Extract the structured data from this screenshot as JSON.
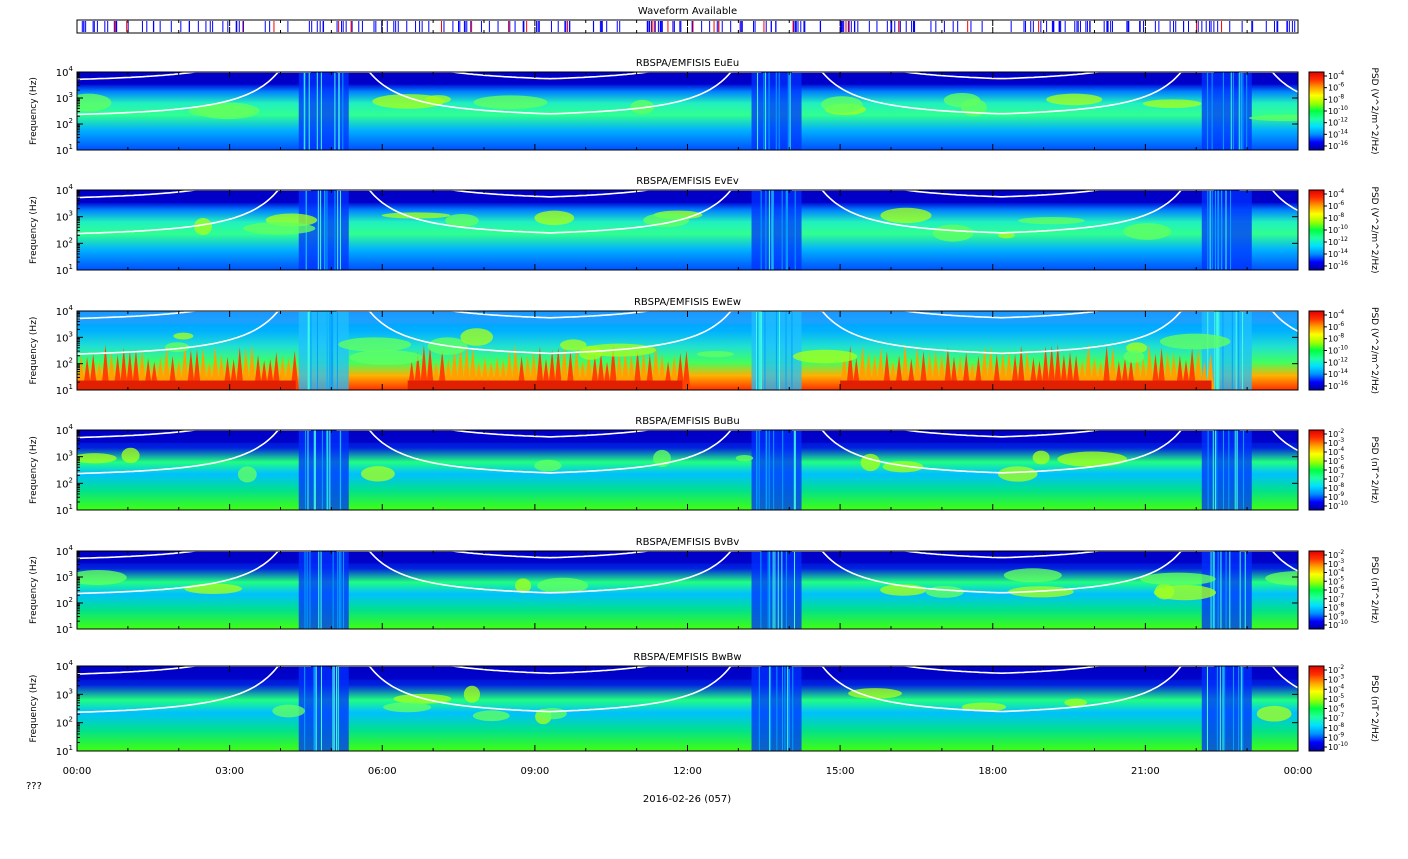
{
  "figure": {
    "date_label": "2016-02-26 (057)",
    "corner_label": "???"
  },
  "colors": {
    "waveform_tick_blue": "#0000ff",
    "waveform_tick_red": "#ff0000",
    "plasma_line": "#ffffff",
    "colormap": [
      "#0000a0",
      "#0000ff",
      "#0090ff",
      "#00e0ff",
      "#20ffa0",
      "#00ff40",
      "#a0ff00",
      "#ffff00",
      "#ffa000",
      "#ff3000",
      "#e00000"
    ]
  },
  "chart_data": [
    {
      "type": "other",
      "title": "Waveform Available",
      "x_range_hours": [
        0,
        24
      ]
    },
    {
      "type": "heatmap",
      "title": "RBSPA/EMFISIS  EuEu",
      "ylabel": "Frequency (Hz)",
      "ylim_log10": [
        1,
        4
      ],
      "y_ticks": [
        {
          "base": "10",
          "exp": "1"
        },
        {
          "base": "10",
          "exp": "2"
        },
        {
          "base": "10",
          "exp": "3"
        },
        {
          "base": "10",
          "exp": "4"
        }
      ],
      "colorbar": {
        "label": "PSD (V^2/m^2/Hz)",
        "ticks": [
          {
            "base": "10",
            "exp": "-4"
          },
          {
            "base": "10",
            "exp": "-6"
          },
          {
            "base": "10",
            "exp": "-8"
          },
          {
            "base": "10",
            "exp": "-10"
          },
          {
            "base": "10",
            "exp": "-12"
          },
          {
            "base": "10",
            "exp": "-14"
          },
          {
            "base": "10",
            "exp": "-16"
          }
        ]
      }
    },
    {
      "type": "heatmap",
      "title": "RBSPA/EMFISIS  EvEv",
      "ylabel": "Frequency (Hz)",
      "ylim_log10": [
        1,
        4
      ],
      "y_ticks": [
        {
          "base": "10",
          "exp": "1"
        },
        {
          "base": "10",
          "exp": "2"
        },
        {
          "base": "10",
          "exp": "3"
        },
        {
          "base": "10",
          "exp": "4"
        }
      ],
      "colorbar": {
        "label": "PSD (V^2/m^2/Hz)",
        "ticks": [
          {
            "base": "10",
            "exp": "-4"
          },
          {
            "base": "10",
            "exp": "-6"
          },
          {
            "base": "10",
            "exp": "-8"
          },
          {
            "base": "10",
            "exp": "-10"
          },
          {
            "base": "10",
            "exp": "-12"
          },
          {
            "base": "10",
            "exp": "-14"
          },
          {
            "base": "10",
            "exp": "-16"
          }
        ]
      }
    },
    {
      "type": "heatmap",
      "title": "RBSPA/EMFISIS  EwEw",
      "ylabel": "Frequency (Hz)",
      "ylim_log10": [
        1,
        4
      ],
      "y_ticks": [
        {
          "base": "10",
          "exp": "1"
        },
        {
          "base": "10",
          "exp": "2"
        },
        {
          "base": "10",
          "exp": "3"
        },
        {
          "base": "10",
          "exp": "4"
        }
      ],
      "colorbar": {
        "label": "PSD (V^2/m^2/Hz)",
        "ticks": [
          {
            "base": "10",
            "exp": "-4"
          },
          {
            "base": "10",
            "exp": "-6"
          },
          {
            "base": "10",
            "exp": "-8"
          },
          {
            "base": "10",
            "exp": "-10"
          },
          {
            "base": "10",
            "exp": "-12"
          },
          {
            "base": "10",
            "exp": "-14"
          },
          {
            "base": "10",
            "exp": "-16"
          }
        ]
      }
    },
    {
      "type": "heatmap",
      "title": "RBSPA/EMFISIS  BuBu",
      "ylabel": "Frequency (Hz)",
      "ylim_log10": [
        1,
        4
      ],
      "y_ticks": [
        {
          "base": "10",
          "exp": "1"
        },
        {
          "base": "10",
          "exp": "2"
        },
        {
          "base": "10",
          "exp": "3"
        },
        {
          "base": "10",
          "exp": "4"
        }
      ],
      "colorbar": {
        "label": "PSD (nT^2/Hz)",
        "ticks": [
          {
            "base": "10",
            "exp": "-2"
          },
          {
            "base": "10",
            "exp": "-3"
          },
          {
            "base": "10",
            "exp": "-4"
          },
          {
            "base": "10",
            "exp": "-5"
          },
          {
            "base": "10",
            "exp": "-6"
          },
          {
            "base": "10",
            "exp": "-7"
          },
          {
            "base": "10",
            "exp": "-8"
          },
          {
            "base": "10",
            "exp": "-9"
          },
          {
            "base": "10",
            "exp": "-10"
          }
        ]
      }
    },
    {
      "type": "heatmap",
      "title": "RBSPA/EMFISIS  BvBv",
      "ylabel": "Frequency (Hz)",
      "ylim_log10": [
        1,
        4
      ],
      "y_ticks": [
        {
          "base": "10",
          "exp": "1"
        },
        {
          "base": "10",
          "exp": "2"
        },
        {
          "base": "10",
          "exp": "3"
        },
        {
          "base": "10",
          "exp": "4"
        }
      ],
      "colorbar": {
        "label": "PSD (nT^2/Hz)",
        "ticks": [
          {
            "base": "10",
            "exp": "-2"
          },
          {
            "base": "10",
            "exp": "-3"
          },
          {
            "base": "10",
            "exp": "-4"
          },
          {
            "base": "10",
            "exp": "-5"
          },
          {
            "base": "10",
            "exp": "-6"
          },
          {
            "base": "10",
            "exp": "-7"
          },
          {
            "base": "10",
            "exp": "-8"
          },
          {
            "base": "10",
            "exp": "-9"
          },
          {
            "base": "10",
            "exp": "-10"
          }
        ]
      }
    },
    {
      "type": "heatmap",
      "title": "RBSPA/EMFISIS  BwBw",
      "ylabel": "Frequency (Hz)",
      "ylim_log10": [
        1,
        4
      ],
      "y_ticks": [
        {
          "base": "10",
          "exp": "1"
        },
        {
          "base": "10",
          "exp": "2"
        },
        {
          "base": "10",
          "exp": "3"
        },
        {
          "base": "10",
          "exp": "4"
        }
      ],
      "colorbar": {
        "label": "PSD (nT^2/Hz)",
        "ticks": [
          {
            "base": "10",
            "exp": "-2"
          },
          {
            "base": "10",
            "exp": "-3"
          },
          {
            "base": "10",
            "exp": "-4"
          },
          {
            "base": "10",
            "exp": "-5"
          },
          {
            "base": "10",
            "exp": "-6"
          },
          {
            "base": "10",
            "exp": "-7"
          },
          {
            "base": "10",
            "exp": "-8"
          },
          {
            "base": "10",
            "exp": "-9"
          },
          {
            "base": "10",
            "exp": "-10"
          }
        ]
      }
    }
  ],
  "x_axis": {
    "ticks": [
      "00:00",
      "03:00",
      "06:00",
      "09:00",
      "12:00",
      "15:00",
      "18:00",
      "21:00",
      "00:00"
    ],
    "tick_hours": [
      0,
      3,
      6,
      9,
      12,
      15,
      18,
      21,
      24
    ],
    "minor_every_hours": 1
  }
}
